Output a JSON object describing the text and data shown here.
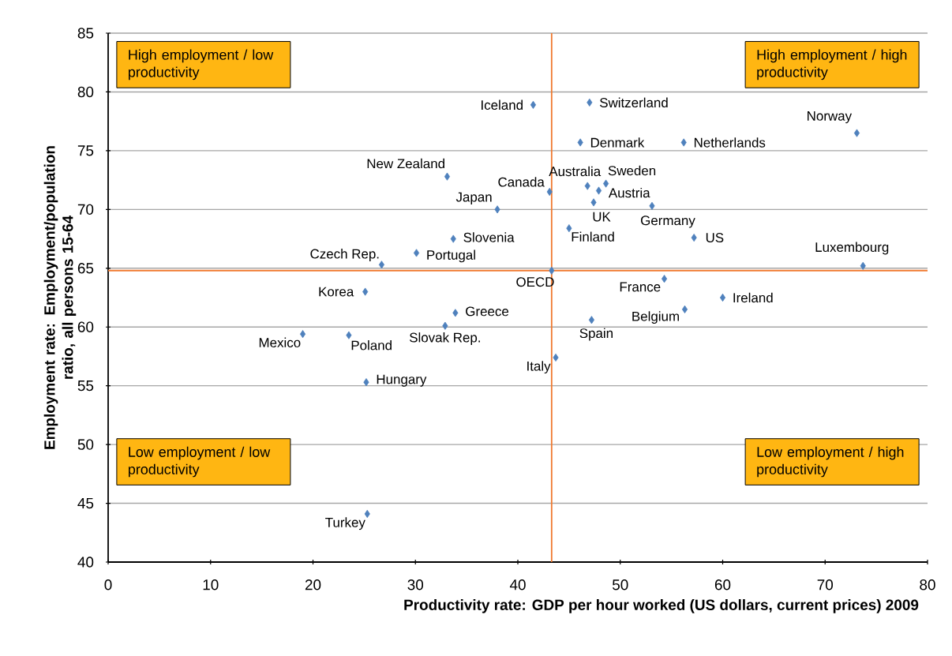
{
  "chart_data": {
    "type": "scatter",
    "xlabel": "Productivity rate: GDP per hour worked (US dollars, current prices) 2009",
    "ylabel": "Employment rate: Employment/population ratio, all persons 15-64",
    "xlim": [
      0,
      80
    ],
    "xticks": [
      0,
      10,
      20,
      30,
      40,
      50,
      60,
      70,
      80
    ],
    "ylim": [
      40,
      85
    ],
    "yticks": [
      40,
      45,
      50,
      55,
      60,
      65,
      70,
      75,
      80,
      85
    ],
    "grid": "y",
    "marker": "diamond",
    "series": [
      {
        "color": "#4f81bd",
        "x": [
          41.5,
          47.0,
          73.1,
          46.1,
          56.2,
          33.1,
          46.8,
          48.6,
          47.9,
          43.1,
          38.0,
          47.4,
          53.1,
          45.0,
          57.2,
          33.7,
          30.1,
          26.7,
          73.7,
          43.3,
          54.3,
          25.1,
          60.0,
          33.9,
          56.3,
          32.9,
          47.2,
          19.0,
          23.5,
          43.7,
          25.2,
          25.3
        ],
        "values": [
          78.9,
          79.1,
          76.5,
          75.7,
          75.7,
          72.8,
          72.0,
          72.2,
          71.6,
          71.5,
          70.0,
          70.6,
          70.3,
          68.4,
          67.6,
          67.5,
          66.3,
          65.3,
          65.2,
          64.8,
          64.1,
          63.0,
          62.5,
          61.2,
          61.5,
          60.1,
          60.6,
          59.4,
          59.3,
          57.4,
          55.3,
          44.1
        ]
      }
    ],
    "ref_lines": [
      {
        "axis": "x",
        "value": 43.3,
        "color": "#f07a30"
      },
      {
        "axis": "y",
        "value": 64.8,
        "color": "#f07a30"
      }
    ],
    "annotations": [
      {
        "text": "Iceland",
        "x": 41.5,
        "y": 78.9
      },
      {
        "text": "Switzerland",
        "x": 47.0,
        "y": 79.1
      },
      {
        "text": "Norway",
        "x": 73.1,
        "y": 76.5
      },
      {
        "text": "Denmark",
        "x": 46.1,
        "y": 75.7
      },
      {
        "text": "Netherlands",
        "x": 56.2,
        "y": 75.7
      },
      {
        "text": "New Zealand",
        "x": 33.1,
        "y": 72.8
      },
      {
        "text": "Australia",
        "x": 46.8,
        "y": 72.0
      },
      {
        "text": "Sweden",
        "x": 48.6,
        "y": 72.2
      },
      {
        "text": "Austria",
        "x": 47.9,
        "y": 71.6
      },
      {
        "text": "Canada",
        "x": 43.1,
        "y": 71.5
      },
      {
        "text": "Japan",
        "x": 38.0,
        "y": 70.0
      },
      {
        "text": "UK",
        "x": 47.4,
        "y": 70.6
      },
      {
        "text": "Germany",
        "x": 53.1,
        "y": 70.3
      },
      {
        "text": "Finland",
        "x": 45.0,
        "y": 68.4
      },
      {
        "text": "US",
        "x": 57.2,
        "y": 67.6
      },
      {
        "text": "Slovenia",
        "x": 33.7,
        "y": 67.5
      },
      {
        "text": "Portugal",
        "x": 30.1,
        "y": 66.3
      },
      {
        "text": "Czech Rep.",
        "x": 26.7,
        "y": 65.3
      },
      {
        "text": "Luxembourg",
        "x": 73.7,
        "y": 65.2
      },
      {
        "text": "OECD",
        "x": 43.3,
        "y": 64.8
      },
      {
        "text": "France",
        "x": 54.3,
        "y": 64.1
      },
      {
        "text": "Korea",
        "x": 25.1,
        "y": 63.0
      },
      {
        "text": "Ireland",
        "x": 60.0,
        "y": 62.5
      },
      {
        "text": "Greece",
        "x": 33.9,
        "y": 61.2
      },
      {
        "text": "Belgium",
        "x": 56.3,
        "y": 61.5
      },
      {
        "text": "Slovak Rep.",
        "x": 32.9,
        "y": 60.1
      },
      {
        "text": "Spain",
        "x": 47.2,
        "y": 60.6
      },
      {
        "text": "Mexico",
        "x": 19.0,
        "y": 59.4
      },
      {
        "text": "Poland",
        "x": 23.5,
        "y": 59.3
      },
      {
        "text": "Italy",
        "x": 43.7,
        "y": 57.4
      },
      {
        "text": "Hungary",
        "x": 25.2,
        "y": 55.3
      },
      {
        "text": "Turkey",
        "x": 25.3,
        "y": 44.1
      },
      "High employment / low productivity",
      "High employment / high productivity",
      "Low employment / low productivity",
      "Low employment / high productivity"
    ]
  }
}
